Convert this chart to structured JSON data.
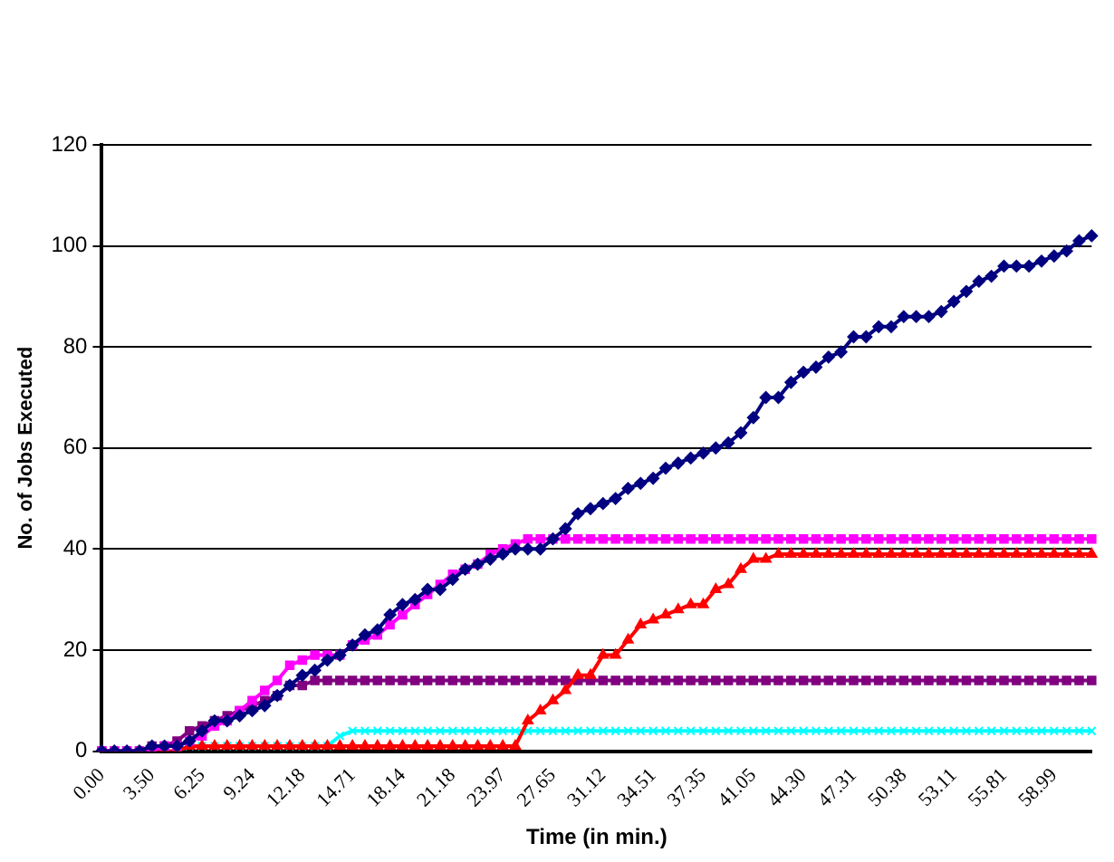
{
  "chart_data": {
    "type": "line",
    "xlabel": "Time (in min.)",
    "ylabel": "No. of Jobs Executed",
    "categories": [
      "0.00",
      null,
      null,
      null,
      "3.50",
      null,
      null,
      null,
      "6.25",
      null,
      null,
      null,
      "9.24",
      null,
      null,
      null,
      "12.18",
      null,
      null,
      null,
      "14.71",
      null,
      null,
      null,
      "18.14",
      null,
      null,
      null,
      "21.18",
      null,
      null,
      null,
      "23.97",
      null,
      null,
      null,
      "27.65",
      null,
      null,
      null,
      "31.12",
      null,
      null,
      null,
      "34.51",
      null,
      null,
      null,
      "37.35",
      null,
      null,
      null,
      "41.05",
      null,
      null,
      null,
      "44.30",
      null,
      null,
      null,
      "47.31",
      null,
      null,
      null,
      "50.38",
      null,
      null,
      null,
      "53.11",
      null,
      null,
      null,
      "55.81",
      null,
      null,
      null,
      "58.99",
      null,
      null,
      null
    ],
    "series": [
      {
        "color": "#000080",
        "marker": "diamond",
        "values": [
          0,
          0,
          0,
          0,
          1,
          1,
          1,
          2,
          4,
          6,
          6,
          7,
          8,
          9,
          11,
          13,
          15,
          16,
          18,
          19,
          21,
          23,
          24,
          27,
          29,
          30,
          32,
          32,
          34,
          36,
          37,
          38,
          39,
          40,
          40,
          40,
          42,
          44,
          47,
          48,
          49,
          50,
          52,
          53,
          54,
          56,
          57,
          58,
          59,
          60,
          61,
          63,
          66,
          70,
          70,
          73,
          75,
          76,
          78,
          79,
          82,
          82,
          84,
          84,
          86,
          86,
          86,
          87,
          89,
          91,
          93,
          94,
          96,
          96,
          96,
          97,
          98,
          99,
          101,
          102
        ]
      },
      {
        "color": "#ff00ff",
        "marker": "square",
        "values": [
          0,
          0,
          0,
          0,
          0,
          1,
          1,
          2,
          3,
          5,
          6,
          8,
          10,
          12,
          14,
          17,
          18,
          19,
          19,
          19,
          21,
          22,
          23,
          25,
          27,
          29,
          31,
          33,
          35,
          36,
          37,
          39,
          40,
          41,
          42,
          42,
          42,
          42,
          42,
          42,
          42,
          42,
          42,
          42,
          42,
          42,
          42,
          42,
          42,
          42,
          42,
          42,
          42,
          42,
          42,
          42,
          42,
          42,
          42,
          42,
          42,
          42,
          42,
          42,
          42,
          42,
          42,
          42,
          42,
          42,
          42,
          42,
          42,
          42,
          42,
          42,
          42,
          42,
          42,
          42
        ]
      },
      {
        "color": "#ff0000",
        "marker": "triangle",
        "values": [
          null,
          null,
          null,
          null,
          0,
          0,
          0,
          1,
          1,
          1,
          1,
          1,
          1,
          1,
          1,
          1,
          1,
          1,
          1,
          1,
          1,
          1,
          1,
          1,
          1,
          1,
          1,
          1,
          1,
          1,
          1,
          1,
          1,
          1,
          6,
          8,
          10,
          12,
          15,
          15,
          19,
          19,
          22,
          25,
          26,
          27,
          28,
          29,
          29,
          32,
          33,
          36,
          38,
          38,
          39,
          39,
          39,
          39,
          39,
          39,
          39,
          39,
          39,
          39,
          39,
          39,
          39,
          39,
          39,
          39,
          39,
          39,
          39,
          39,
          39,
          39,
          39,
          39,
          39,
          39
        ]
      },
      {
        "color": "#00ffff",
        "marker": "cross",
        "values": [
          null,
          null,
          null,
          null,
          null,
          null,
          0,
          1,
          1,
          1,
          1,
          1,
          1,
          1,
          1,
          1,
          1,
          1,
          1,
          3,
          4,
          4,
          4,
          4,
          4,
          4,
          4,
          4,
          4,
          4,
          4,
          4,
          4,
          4,
          4,
          4,
          4,
          4,
          4,
          4,
          4,
          4,
          4,
          4,
          4,
          4,
          4,
          4,
          4,
          4,
          4,
          4,
          4,
          4,
          4,
          4,
          4,
          4,
          4,
          4,
          4,
          4,
          4,
          4,
          4,
          4,
          4,
          4,
          4,
          4,
          4,
          4,
          4,
          4,
          4,
          4,
          4,
          4,
          4,
          4
        ]
      },
      {
        "color": "#800080",
        "marker": "square",
        "values": [
          0,
          0,
          0,
          0,
          1,
          1,
          2,
          4,
          5,
          6,
          7,
          8,
          9,
          10,
          11,
          13,
          13,
          14,
          14,
          14,
          14,
          14,
          14,
          14,
          14,
          14,
          14,
          14,
          14,
          14,
          14,
          14,
          14,
          14,
          14,
          14,
          14,
          14,
          14,
          14,
          14,
          14,
          14,
          14,
          14,
          14,
          14,
          14,
          14,
          14,
          14,
          14,
          14,
          14,
          14,
          14,
          14,
          14,
          14,
          14,
          14,
          14,
          14,
          14,
          14,
          14,
          14,
          14,
          14,
          14,
          14,
          14,
          14,
          14,
          14,
          14,
          14,
          14,
          14,
          14
        ]
      }
    ],
    "ylim": [
      0,
      120
    ],
    "yticks": [
      0,
      20,
      40,
      60,
      80,
      100,
      120
    ],
    "grid": "y",
    "legend": false,
    "line_style": "solid"
  }
}
